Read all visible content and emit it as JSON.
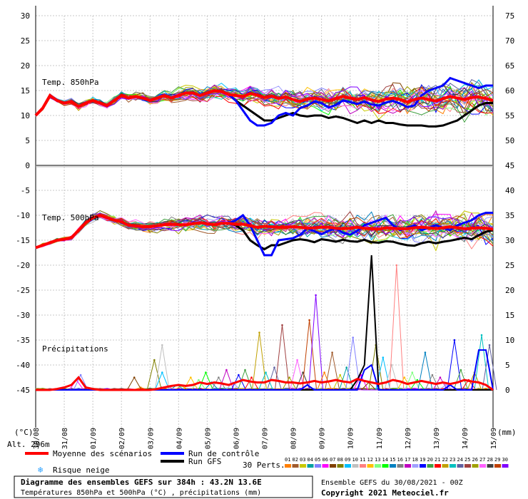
{
  "chart_data": {
    "type": "line",
    "title": "Diagramme des ensembles GEFS sur 384h : 43.2N 13.6E",
    "subtitle": "Températures 850hPa et 500hPa (°C) , précipitations (mm)",
    "ylabel_left": "(°C)",
    "ylabel_right": "(mm)",
    "alt_label": "Alt. 296m",
    "run_info": "Ensemble GEFS du 30/08/2021 - 00Z",
    "copyright": "Copyright 2021 Meteociel.fr",
    "perts_label": "30 Perts.",
    "x_dates": [
      "30/08",
      "31/08",
      "01/09",
      "02/09",
      "03/09",
      "04/09",
      "05/09",
      "06/09",
      "07/09",
      "08/09",
      "09/09",
      "10/09",
      "11/09",
      "12/09",
      "13/09",
      "14/09",
      "15/09"
    ],
    "y_left_ticks": [
      30,
      25,
      20,
      15,
      10,
      5,
      0,
      -5,
      -10,
      -15,
      -20,
      -25,
      -30,
      -35,
      -40,
      -45
    ],
    "y_right_ticks": [
      75,
      70,
      65,
      60,
      55,
      50,
      45,
      40,
      35,
      30,
      25,
      20,
      15,
      10,
      5,
      0
    ],
    "panels": {
      "t850_label": "Temp. 850hPa",
      "t500_label": "Temp. 500hPa",
      "precip_label": "Précipitations"
    },
    "legend": {
      "mean": "Moyenne des scénarios",
      "control": "Run de contrôle",
      "gfs": "Run GFS",
      "snow": "Risque neige"
    },
    "pert_ids": [
      "01",
      "02",
      "03",
      "04",
      "05",
      "06",
      "07",
      "08",
      "09",
      "10",
      "11",
      "12",
      "13",
      "14",
      "15",
      "16",
      "17",
      "18",
      "19",
      "20",
      "21",
      "22",
      "23",
      "24",
      "25",
      "26",
      "27",
      "28",
      "29",
      "30"
    ],
    "pert_colors": [
      "#ff7f00",
      "#a05a2c",
      "#c8c800",
      "#00a0a0",
      "#8080ff",
      "#ff00ff",
      "#804000",
      "#808000",
      "#00c0ff",
      "#c0c0c0",
      "#ff8080",
      "#ffc000",
      "#80ff80",
      "#00ff00",
      "#0080c0",
      "#808080",
      "#c000c0",
      "#a0a0ff",
      "#0000ff",
      "#40a040",
      "#ff0000",
      "#c0a000",
      "#00c0c0",
      "#6060a0",
      "#a04040",
      "#a0a000",
      "#ff60ff",
      "#404040",
      "#c04000",
      "#8000ff"
    ],
    "x_step_hours": 6,
    "t850": {
      "mean": [
        10,
        11.5,
        14,
        13,
        12.5,
        12.8,
        11.8,
        12.5,
        13,
        12.5,
        12,
        13,
        14,
        13.5,
        13.8,
        13.5,
        13,
        13.5,
        14,
        13.5,
        14,
        14.5,
        14.5,
        14,
        14.5,
        15,
        14.8,
        14.2,
        14,
        13.8,
        14.4,
        14.1,
        13.6,
        13.9,
        13.4,
        13.7,
        13.2,
        12.8,
        13.3,
        13.5,
        13.2,
        12.9,
        13.4,
        13.8,
        13.5,
        13.2,
        13.6,
        13.1,
        12.8,
        13.3,
        13.5,
        13.2,
        12.7,
        13.2,
        13.5,
        13.2,
        12.9,
        13.4,
        13.8,
        13.5,
        13.2,
        13.6,
        13.7,
        13.4,
        13.0
      ],
      "control": [
        10,
        11.5,
        14,
        13,
        12.5,
        12.8,
        11.8,
        12.5,
        13,
        12.5,
        12,
        13,
        14,
        13.5,
        13.8,
        13.5,
        13,
        13.5,
        14,
        13.5,
        14,
        14.5,
        14.5,
        14,
        14.5,
        15,
        14.8,
        14.2,
        13,
        11,
        9,
        8,
        8,
        8.5,
        10,
        10.5,
        10,
        11.5,
        12,
        12.8,
        12.5,
        11.6,
        12.1,
        13,
        12.7,
        12.3,
        12.8,
        12.2,
        12,
        12.6,
        12.9,
        12.4,
        11.7,
        12,
        14,
        15,
        15.5,
        16,
        17.5,
        17,
        16.5,
        16,
        15.5,
        16,
        16
      ],
      "gfs": [
        10,
        11.5,
        14,
        13,
        12.5,
        12.8,
        11.8,
        12.5,
        13,
        12.5,
        12,
        13,
        14,
        13.5,
        13.8,
        13.5,
        13,
        13.5,
        14,
        13.5,
        14,
        14.5,
        14.5,
        14,
        14.5,
        15,
        14.8,
        14.2,
        13,
        12,
        11,
        10,
        9,
        9,
        9.5,
        10,
        10.5,
        10,
        9.8,
        10,
        10,
        9.5,
        9.8,
        9.5,
        9,
        8.5,
        9,
        8.5,
        9,
        8.5,
        8.5,
        8.2,
        8,
        8,
        8,
        7.8,
        7.8,
        8,
        8.5,
        9,
        10,
        11,
        12,
        12.5,
        12.5
      ]
    },
    "t500": {
      "mean": [
        -16.5,
        -16,
        -15.5,
        -15,
        -14.8,
        -14.5,
        -13,
        -11.5,
        -10.5,
        -10,
        -10.5,
        -11,
        -11.3,
        -12,
        -12.1,
        -12.3,
        -12.3,
        -12.1,
        -11.9,
        -11.8,
        -11.9,
        -11.9,
        -11.7,
        -11.5,
        -11.7,
        -11.9,
        -11.6,
        -11.6,
        -11.8,
        -11.8,
        -12.1,
        -12.4,
        -12.2,
        -12.3,
        -12.4,
        -12.4,
        -12.3,
        -12.4,
        -12.6,
        -12.5,
        -12.4,
        -12.4,
        -12.6,
        -12.7,
        -12.6,
        -12.4,
        -12.6,
        -12.7,
        -12.8,
        -12.5,
        -12.6,
        -12.7,
        -12.7,
        -12.5,
        -12.4,
        -12.5,
        -12.7,
        -12.5,
        -12.3,
        -12.5,
        -12.7,
        -12.6,
        -12.5,
        -12.6,
        -12.8
      ],
      "control": [
        -16.5,
        -16,
        -15.5,
        -15,
        -14.8,
        -14.5,
        -13,
        -11.5,
        -10.5,
        -10,
        -10.5,
        -11,
        -11.3,
        -12,
        -12.1,
        -12.3,
        -12.3,
        -12.1,
        -11.9,
        -11.8,
        -11.9,
        -11.9,
        -11.7,
        -11.5,
        -11.7,
        -11.9,
        -11.6,
        -11.6,
        -11,
        -10,
        -12,
        -15,
        -18,
        -18,
        -15,
        -14.8,
        -14.6,
        -13.9,
        -12.6,
        -13.2,
        -13.8,
        -13.1,
        -12.6,
        -13.5,
        -13.9,
        -13.1,
        -12,
        -11.5,
        -11,
        -10.5,
        -12,
        -13,
        -12.5,
        -12,
        -13,
        -12.5,
        -12,
        -12.5,
        -13,
        -12,
        -11.5,
        -11,
        -10,
        -9.5,
        -9.5
      ],
      "gfs": [
        -16.5,
        -16,
        -15.5,
        -15,
        -14.8,
        -14.5,
        -13,
        -11.5,
        -10.5,
        -10,
        -10.5,
        -11,
        -11.3,
        -12,
        -12.1,
        -12.3,
        -12.3,
        -12.1,
        -11.9,
        -11.8,
        -11.9,
        -11.9,
        -11.7,
        -11.5,
        -11.7,
        -11.9,
        -11.6,
        -11.6,
        -12,
        -13,
        -15,
        -16,
        -16.8,
        -16,
        -16,
        -15.5,
        -15,
        -14.8,
        -15,
        -15.4,
        -14.8,
        -15,
        -15.3,
        -14.9,
        -15.2,
        -15.3,
        -14.9,
        -15.4,
        -15.5,
        -15.2,
        -15.3,
        -15.7,
        -16,
        -16.1,
        -15.6,
        -15.3,
        -15.6,
        -15.3,
        -15.1,
        -14.8,
        -14.5,
        -14.8,
        -14,
        -13.3,
        -13
      ]
    },
    "precip": {
      "mean": [
        0,
        0,
        0,
        0.2,
        0.5,
        1,
        2.5,
        0.5,
        0.2,
        0,
        0,
        0,
        0,
        0,
        0,
        0,
        0,
        0.2,
        0.5,
        0.8,
        1,
        0.8,
        1,
        1.5,
        1.2,
        1.5,
        1.3,
        1,
        1.5,
        2,
        1.7,
        1.5,
        1.5,
        2,
        1.8,
        1.5,
        1.5,
        1.3,
        1.5,
        1.8,
        1.5,
        1.7,
        2,
        1.7,
        1.5,
        2.2,
        1.8,
        1.5,
        1.2,
        1.5,
        2,
        1.7,
        1.2,
        1.5,
        1.8,
        1.5,
        1.2,
        1.5,
        1.2,
        1.5,
        2,
        1.7,
        1.5,
        1,
        0
      ],
      "control": [
        0,
        0,
        0,
        0,
        0,
        0,
        0,
        0,
        0,
        0,
        0,
        0,
        0,
        0,
        0,
        0,
        0,
        0,
        0,
        0,
        0,
        0,
        0,
        0,
        0,
        0,
        0,
        0,
        0,
        0,
        0,
        0,
        0,
        0,
        0,
        0,
        0,
        0,
        1,
        0,
        0,
        0,
        0,
        0,
        0,
        0,
        4,
        5,
        0,
        0,
        0,
        0,
        0,
        0,
        0,
        0,
        0,
        0,
        1,
        0,
        0,
        0,
        8,
        8,
        0
      ],
      "gfs": [
        0,
        0,
        0,
        0,
        0,
        0,
        0,
        0,
        0,
        0,
        0,
        0,
        0,
        0,
        0,
        0,
        0,
        0,
        0,
        0,
        0,
        0,
        0,
        0,
        0,
        0,
        0,
        0,
        0,
        0,
        0,
        0,
        0,
        0,
        0,
        0,
        0,
        0,
        0,
        0,
        0,
        0,
        0,
        0,
        0,
        2,
        5,
        27,
        0,
        0,
        0,
        0,
        0,
        0,
        0,
        0,
        0,
        0,
        0,
        0,
        0,
        0,
        0,
        0,
        0
      ]
    },
    "precip_spikes": [
      {
        "x": 14.7,
        "v": 0.5
      },
      {
        "x": 17.6,
        "v": 0.5
      },
      {
        "x": 20.4,
        "v": 0.8
      },
      {
        "x": 19.8,
        "v": 1
      },
      {
        "x": 6.3,
        "v": 3
      },
      {
        "x": 5.7,
        "v": 2
      },
      {
        "x": 13.8,
        "v": 2.5
      },
      {
        "x": 16.6,
        "v": 6
      },
      {
        "x": 17.7,
        "v": 3.5
      },
      {
        "x": 17.7,
        "v": 9
      },
      {
        "x": 18.5,
        "v": 0.8
      },
      {
        "x": 21.7,
        "v": 2.5
      },
      {
        "x": 22.8,
        "v": 2
      },
      {
        "x": 23.8,
        "v": 3.5
      },
      {
        "x": 24.6,
        "v": 1.5
      },
      {
        "x": 25.6,
        "v": 2.5
      },
      {
        "x": 26.7,
        "v": 4
      },
      {
        "x": 27.6,
        "v": 1.5
      },
      {
        "x": 28.4,
        "v": 3
      },
      {
        "x": 29.3,
        "v": 4
      },
      {
        "x": 30.2,
        "v": 2.5
      },
      {
        "x": 31.3,
        "v": 11.5
      },
      {
        "x": 32.2,
        "v": 3.5
      },
      {
        "x": 33.4,
        "v": 4.5
      },
      {
        "x": 34.5,
        "v": 13
      },
      {
        "x": 35.5,
        "v": 2.5
      },
      {
        "x": 36.6,
        "v": 6
      },
      {
        "x": 37.4,
        "v": 3.5
      },
      {
        "x": 38.3,
        "v": 14
      },
      {
        "x": 39.2,
        "v": 19
      },
      {
        "x": 40.4,
        "v": 3.5
      },
      {
        "x": 41.5,
        "v": 7.5
      },
      {
        "x": 42.6,
        "v": 3
      },
      {
        "x": 43.5,
        "v": 4.5
      },
      {
        "x": 44.4,
        "v": 10.5
      },
      {
        "x": 45.5,
        "v": 3
      },
      {
        "x": 46.6,
        "v": 1.5
      },
      {
        "x": 47.6,
        "v": 9
      },
      {
        "x": 48.6,
        "v": 6.5
      },
      {
        "x": 49.8,
        "v": 5
      },
      {
        "x": 50.5,
        "v": 25
      },
      {
        "x": 51.6,
        "v": 2.5
      },
      {
        "x": 52.7,
        "v": 3.5
      },
      {
        "x": 53.4,
        "v": 2
      },
      {
        "x": 54.5,
        "v": 7.5
      },
      {
        "x": 55.5,
        "v": 3
      },
      {
        "x": 56.6,
        "v": 2.5
      },
      {
        "x": 57.4,
        "v": 1
      },
      {
        "x": 58.6,
        "v": 10
      },
      {
        "x": 59.5,
        "v": 4
      },
      {
        "x": 60.6,
        "v": 2
      },
      {
        "x": 61.4,
        "v": 3.5
      },
      {
        "x": 62.4,
        "v": 11
      },
      {
        "x": 63.5,
        "v": 9
      }
    ],
    "ylim_left": [
      -45,
      30
    ],
    "ylim_right": [
      0,
      75
    ],
    "grid": true
  }
}
